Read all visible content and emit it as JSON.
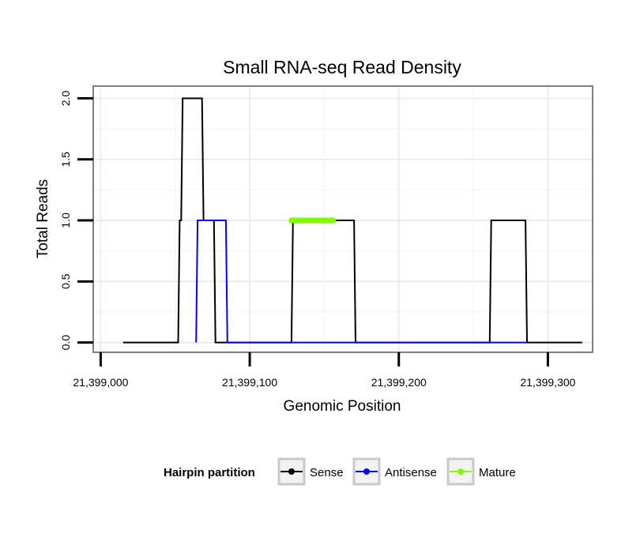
{
  "chart_data": {
    "type": "line",
    "title": "Small RNA-seq Read Density",
    "xlabel": "Genomic Position",
    "ylabel": "Total Reads",
    "xlim": [
      21398995,
      21399330
    ],
    "ylim": [
      -0.08,
      2.1
    ],
    "x_ticks": [
      21399000,
      21399100,
      21399200,
      21399300
    ],
    "x_tick_labels": [
      "21,399,000",
      "21,399,100",
      "21,399,200",
      "21,399,300"
    ],
    "y_ticks": [
      0,
      0.5,
      1,
      1.5,
      2
    ],
    "y_tick_labels": [
      "0.0",
      "0.5",
      "1.0",
      "1.5",
      "2.0"
    ],
    "grid": true,
    "legend": {
      "title": "Hairpin partition",
      "position": "bottom",
      "entries": [
        {
          "name": "Sense",
          "color": "#000000"
        },
        {
          "name": "Antisense",
          "color": "#0000ff"
        },
        {
          "name": "Mature",
          "color": "#7cfc00"
        }
      ]
    },
    "series": [
      {
        "name": "Sense",
        "color": "#000000",
        "x": [
          21399015,
          21399052,
          21399053,
          21399054,
          21399055,
          21399056,
          21399068,
          21399069,
          21399076,
          21399077,
          21399128,
          21399129,
          21399170,
          21399171,
          21399261,
          21399262,
          21399285,
          21399286,
          21399323
        ],
        "y": [
          0,
          0,
          1,
          1,
          2,
          2,
          2,
          1,
          1,
          0,
          0,
          1,
          1,
          0,
          0,
          1,
          1,
          0,
          0
        ]
      },
      {
        "name": "Antisense",
        "color": "#0000ff",
        "x": [
          21399064,
          21399065,
          21399084,
          21399085,
          21399128,
          21399170,
          21399261,
          21399286
        ],
        "y": [
          0,
          1,
          1,
          0,
          0,
          0,
          0,
          0
        ]
      },
      {
        "name": "Mature",
        "color": "#7cfc00",
        "x": [
          21399128,
          21399156
        ],
        "y": [
          1,
          1
        ]
      }
    ]
  }
}
